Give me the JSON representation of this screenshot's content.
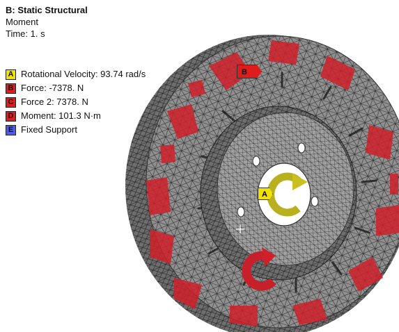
{
  "header": {
    "title": "B: Static Structural",
    "subtitle": "Moment",
    "time": "Time: 1. s"
  },
  "legend": [
    {
      "letter": "A",
      "label": "Rotational Velocity: 93.74 rad/s",
      "color": "#f2e200"
    },
    {
      "letter": "B",
      "label": "Force: -7378. N",
      "color": "#e01b1b"
    },
    {
      "letter": "C",
      "label": "Force 2: 7378. N",
      "color": "#e01b1b"
    },
    {
      "letter": "D",
      "label": "Moment: 101.3 N·m",
      "color": "#e01b1b"
    },
    {
      "letter": "E",
      "label": "Fixed Support",
      "color": "#4b5cf0"
    }
  ],
  "markers": {
    "a": "A",
    "b": "B"
  },
  "colors": {
    "mesh": "#8c8c8c",
    "load_region": "#d0202a",
    "rotation_arrow": "#c8c020"
  }
}
